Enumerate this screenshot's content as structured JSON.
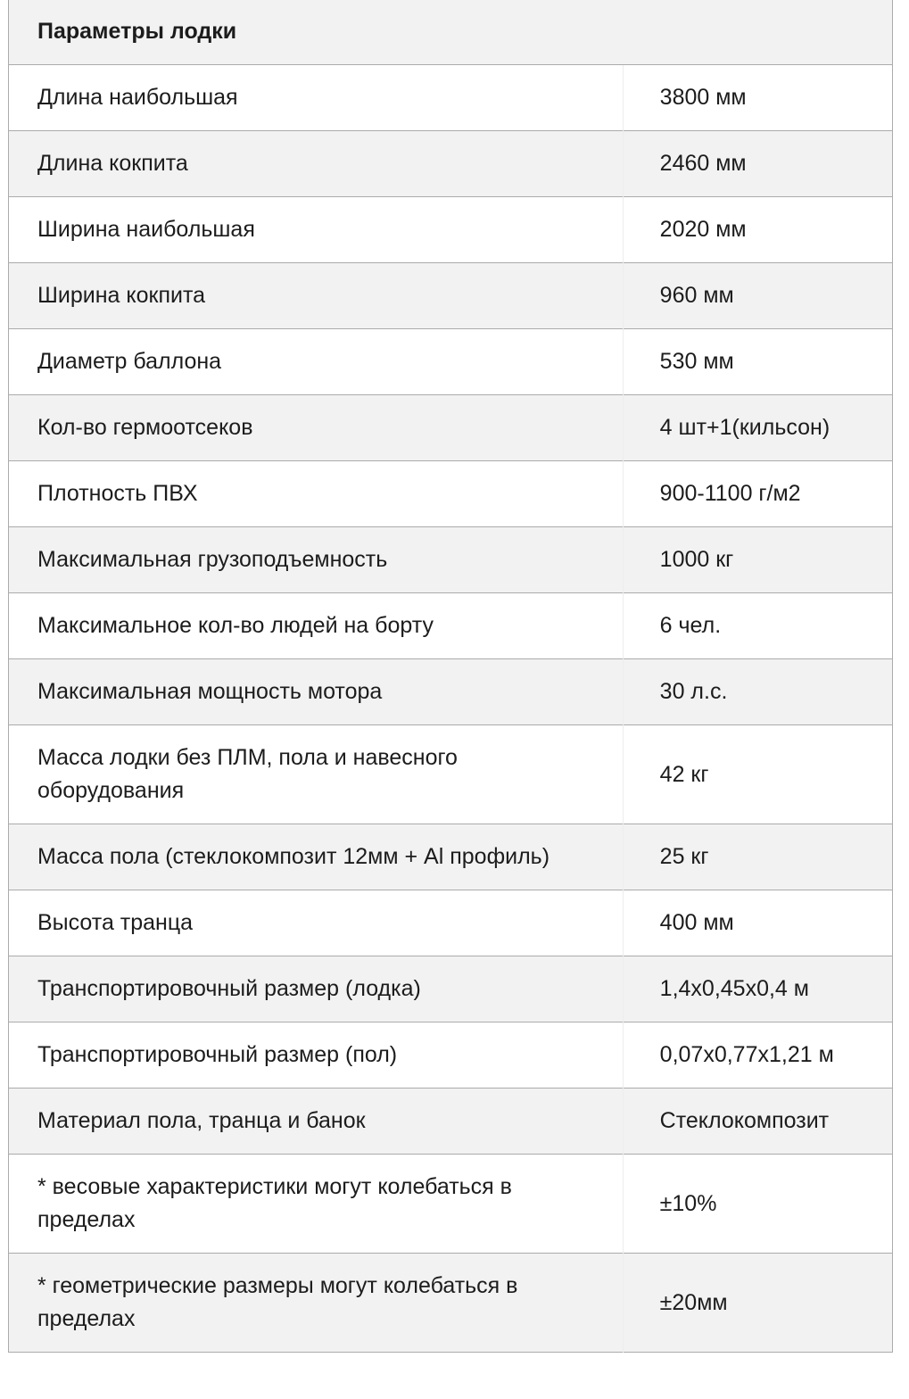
{
  "table": {
    "title": "Параметры лодки",
    "columns": [
      "parameter",
      "value"
    ],
    "rows": [
      {
        "label": "Длина наибольшая",
        "value": "3800 мм"
      },
      {
        "label": "Длина кокпита",
        "value": "2460 мм"
      },
      {
        "label": "Ширина наибольшая",
        "value": "2020 мм"
      },
      {
        "label": "Ширина кокпита",
        "value": "960 мм"
      },
      {
        "label": "Диаметр баллона",
        "value": "530 мм"
      },
      {
        "label": "Кол-во гермоотсеков",
        "value": "4 шт+1(кильсон)"
      },
      {
        "label": "Плотность ПВХ",
        "value": "900-1100 г/м2"
      },
      {
        "label": "Максимальная грузоподъемность",
        "value": "1000 кг"
      },
      {
        "label": "Максимальное кол-во людей на борту",
        "value": "6 чел."
      },
      {
        "label": "Максимальная мощность мотора",
        "value": "30 л.с."
      },
      {
        "label": "Масса лодки без ПЛМ, пола и навесного оборудования",
        "value": "42 кг"
      },
      {
        "label": "Масса пола (стеклокомпозит 12мм + Al профиль)",
        "value": "25 кг"
      },
      {
        "label": "Высота транца",
        "value": "400 мм"
      },
      {
        "label": "Транспортировочный размер (лодка)",
        "value": "1,4х0,45х0,4 м"
      },
      {
        "label": "Транспортировочный размер (пол)",
        "value": "0,07х0,77х1,21 м"
      },
      {
        "label": "Материал пола, транца и банок",
        "value": "Стеклокомпозит"
      },
      {
        "label": "* весовые характеристики могут колебаться в пределах",
        "value": "±10%"
      },
      {
        "label": "* геометрические размеры могут колебаться в пределах",
        "value": "±20мм"
      }
    ]
  },
  "colors": {
    "text": "#1c1c1c",
    "alt_row_bg": "#f2f2f2",
    "border": "#ababab",
    "column_divider": "#ededed",
    "page_bg": "#ffffff"
  }
}
